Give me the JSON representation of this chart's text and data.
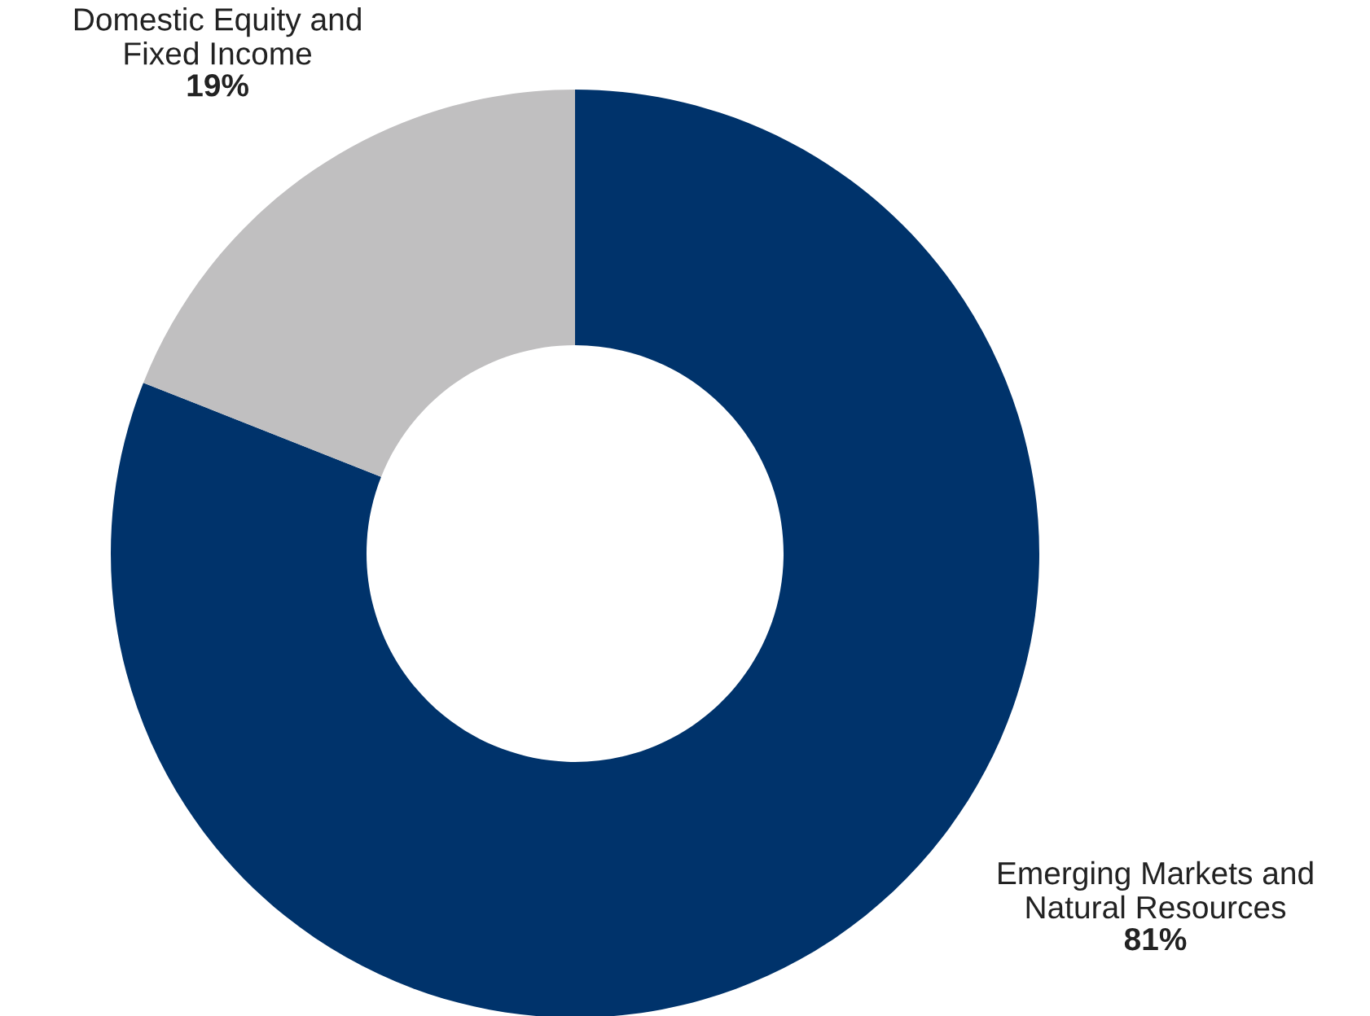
{
  "chart_data": {
    "type": "donut",
    "categories": [
      "Emerging Markets and\nNatural Resources",
      "Domestic Equity and\nFixed Income"
    ],
    "values": [
      81,
      19
    ],
    "colors": [
      "#00336b",
      "#c0bfc0"
    ],
    "value_labels": [
      "81%",
      "19%"
    ]
  }
}
